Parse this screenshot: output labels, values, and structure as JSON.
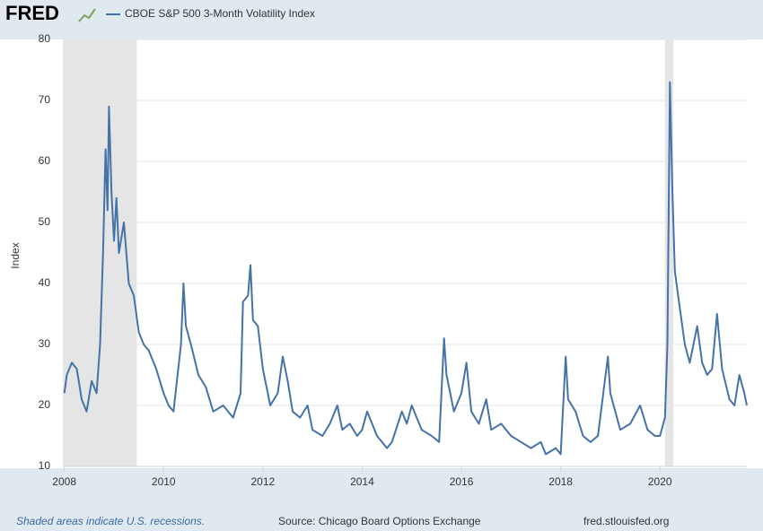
{
  "brand": "FRED",
  "chart_data": {
    "type": "line",
    "series": [
      {
        "name": "CBOE S&P 500 3-Month Volatility Index",
        "color": "#4572a7",
        "x": [
          2008.0,
          2008.05,
          2008.15,
          2008.25,
          2008.35,
          2008.45,
          2008.55,
          2008.65,
          2008.72,
          2008.78,
          2008.83,
          2008.87,
          2008.9,
          2008.95,
          2009.0,
          2009.05,
          2009.1,
          2009.2,
          2009.3,
          2009.4,
          2009.5,
          2009.6,
          2009.7,
          2009.85,
          2010.0,
          2010.1,
          2010.2,
          2010.35,
          2010.4,
          2010.45,
          2010.55,
          2010.7,
          2010.85,
          2011.0,
          2011.2,
          2011.4,
          2011.55,
          2011.6,
          2011.7,
          2011.75,
          2011.8,
          2011.9,
          2012.0,
          2012.15,
          2012.3,
          2012.4,
          2012.5,
          2012.6,
          2012.75,
          2012.9,
          2013.0,
          2013.2,
          2013.35,
          2013.5,
          2013.6,
          2013.75,
          2013.9,
          2014.0,
          2014.1,
          2014.3,
          2014.5,
          2014.6,
          2014.8,
          2014.9,
          2015.0,
          2015.2,
          2015.4,
          2015.55,
          2015.65,
          2015.7,
          2015.85,
          2016.0,
          2016.1,
          2016.2,
          2016.35,
          2016.5,
          2016.6,
          2016.8,
          2017.0,
          2017.2,
          2017.4,
          2017.6,
          2017.7,
          2017.9,
          2018.0,
          2018.1,
          2018.15,
          2018.3,
          2018.45,
          2018.6,
          2018.75,
          2018.95,
          2019.0,
          2019.2,
          2019.4,
          2019.6,
          2019.75,
          2019.9,
          2020.0,
          2020.1,
          2020.15,
          2020.2,
          2020.25,
          2020.3,
          2020.4,
          2020.5,
          2020.6,
          2020.75,
          2020.85,
          2020.95,
          2021.05,
          2021.15,
          2021.25,
          2021.4,
          2021.5,
          2021.6,
          2021.7,
          2021.75
        ],
        "values": [
          22,
          25,
          27,
          26,
          21,
          19,
          24,
          22,
          30,
          45,
          62,
          52,
          69,
          55,
          47,
          54,
          45,
          50,
          40,
          38,
          32,
          30,
          29,
          26,
          22,
          20,
          19,
          30,
          40,
          33,
          30,
          25,
          23,
          19,
          20,
          18,
          22,
          37,
          38,
          43,
          34,
          33,
          26,
          20,
          22,
          28,
          24,
          19,
          18,
          20,
          16,
          15,
          17,
          20,
          16,
          17,
          15,
          16,
          19,
          15,
          13,
          14,
          19,
          17,
          20,
          16,
          15,
          14,
          31,
          25,
          19,
          22,
          27,
          19,
          17,
          21,
          16,
          17,
          15,
          14,
          13,
          14,
          12,
          13,
          12,
          28,
          21,
          19,
          15,
          14,
          15,
          28,
          22,
          16,
          17,
          20,
          16,
          15,
          15,
          18,
          30,
          73,
          55,
          42,
          36,
          30,
          27,
          33,
          27,
          25,
          26,
          35,
          26,
          21,
          20,
          25,
          22,
          20
        ]
      }
    ],
    "recessions": [
      [
        2007.97,
        2009.46
      ],
      [
        2020.1,
        2020.27
      ]
    ],
    "recession_color": "#e5e5e5",
    "xlim": [
      2007.97,
      2021.75
    ],
    "xticks": [
      2008,
      2010,
      2012,
      2014,
      2016,
      2018,
      2020
    ],
    "ylim": [
      10,
      80
    ],
    "yticks": [
      10,
      20,
      30,
      40,
      50,
      60,
      70,
      80
    ],
    "ylabel": "Index",
    "grid": true,
    "note": "Shaded areas indicate U.S. recessions.",
    "source": "Source: Chicago Board Options Exchange",
    "site": "fred.stlouisfed.org"
  }
}
